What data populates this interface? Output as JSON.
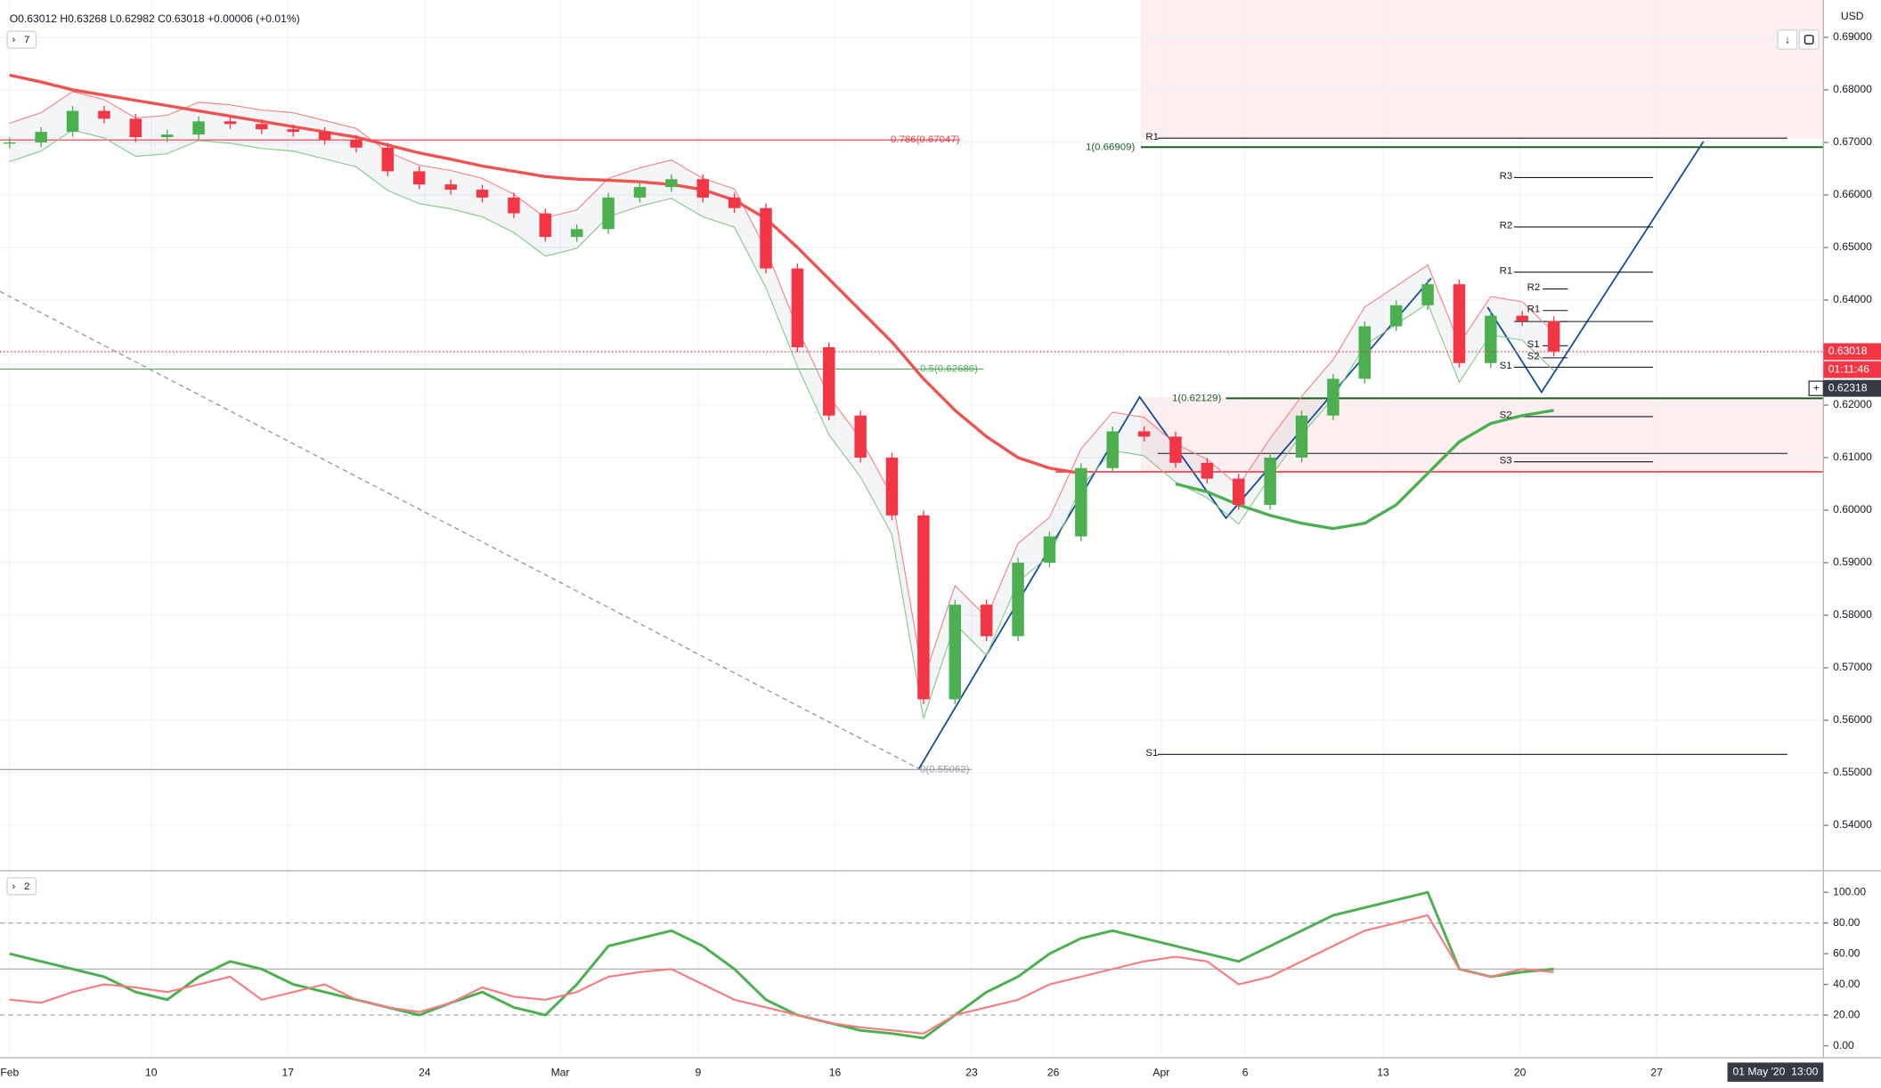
{
  "header": {
    "ohlc": "O0.63012 H0.63268 L0.62982 C0.63018 +0.00006 (+0.01%)",
    "indicator_count": "7",
    "currency": "USD"
  },
  "oscillator_count": "2",
  "time_axis": {
    "labels": [
      "Feb",
      "10",
      "17",
      "24",
      "Mar",
      "9",
      "16",
      "23",
      "26",
      "Apr",
      "6",
      "13",
      "20",
      "27"
    ],
    "cursor_time": "01 May '20  13:00"
  },
  "tags": {
    "last_price": {
      "label": "0.63018",
      "value": 0.63018
    },
    "countdown": "01:11:46",
    "cursor_price": {
      "label": "0.62318",
      "value": 0.62318
    }
  },
  "chart_data": [
    {
      "type": "candlestick",
      "up_color": "#4caf50",
      "down_color": "#f23645",
      "values": [
        0.67,
        0.672,
        0.676,
        0.6745,
        0.671,
        0.6715,
        0.674,
        0.6735,
        0.6725,
        0.672,
        0.6705,
        0.669,
        0.6645,
        0.662,
        0.661,
        0.6595,
        0.6565,
        0.652,
        0.6535,
        0.6595,
        0.6615,
        0.663,
        0.6595,
        0.6575,
        0.646,
        0.631,
        0.618,
        0.61,
        0.599,
        0.564,
        0.582,
        0.576,
        0.59,
        0.595,
        0.608,
        0.615,
        0.614,
        0.609,
        0.606,
        0.601,
        0.61,
        0.618,
        0.625,
        0.635,
        0.639,
        0.643,
        0.628,
        0.637,
        0.636,
        0.6302
      ],
      "series": [
        {
          "color": "#ef5350",
          "values": [
            0.6828,
            0.6815,
            0.68,
            0.679,
            0.678,
            0.677,
            0.676,
            0.675,
            0.674,
            0.673,
            0.672,
            0.671,
            0.6695,
            0.668,
            0.6668,
            0.6655,
            0.6645,
            0.6635,
            0.663,
            0.6628,
            0.6625,
            0.662,
            0.661,
            0.659,
            0.6555,
            0.65,
            0.644,
            0.638,
            0.632,
            0.625,
            0.619,
            0.614,
            0.61,
            0.608,
            0.607,
            null,
            null,
            null,
            null,
            null,
            null,
            null,
            null,
            null,
            null,
            null,
            null,
            null,
            null,
            null
          ]
        },
        {
          "color": "#4caf50",
          "values": [
            null,
            null,
            null,
            null,
            null,
            null,
            null,
            null,
            null,
            null,
            null,
            null,
            null,
            null,
            null,
            null,
            null,
            null,
            null,
            null,
            null,
            null,
            null,
            null,
            null,
            null,
            null,
            null,
            null,
            null,
            null,
            null,
            null,
            null,
            null,
            null,
            null,
            0.605,
            0.6035,
            0.601,
            0.599,
            0.5975,
            0.5965,
            0.5975,
            0.601,
            0.607,
            0.613,
            0.6165,
            0.618,
            0.619
          ]
        }
      ],
      "ylim": [
        0.5316,
        0.6971
      ],
      "yticks": [
        {
          "value": 0.69,
          "label": "0.69000"
        },
        {
          "value": 0.68,
          "label": "0.68000"
        },
        {
          "value": 0.67,
          "label": "0.67000"
        },
        {
          "value": 0.66,
          "label": "0.66000"
        },
        {
          "value": 0.65,
          "label": "0.65000"
        },
        {
          "value": 0.64,
          "label": "0.64000"
        },
        {
          "value": 0.63,
          "label": "0.63000"
        },
        {
          "value": 0.62,
          "label": "0.62000"
        },
        {
          "value": 0.61,
          "label": "0.61000"
        },
        {
          "value": 0.6,
          "label": "0.60000"
        },
        {
          "value": 0.59,
          "label": "0.59000"
        },
        {
          "value": 0.58,
          "label": "0.58000"
        },
        {
          "value": 0.57,
          "label": "0.57000"
        },
        {
          "value": 0.56,
          "label": "0.56000"
        },
        {
          "value": 0.55,
          "label": "0.55000"
        },
        {
          "value": 0.54,
          "label": "0.54000"
        }
      ],
      "zones": [
        {
          "from": 0.6708,
          "to": 0.6971,
          "color": "#fdeef0"
        },
        {
          "from": 0.6073,
          "to": 0.6215,
          "color": "#fdeef0"
        }
      ],
      "hlines": [
        {
          "value": 0.6073,
          "color": "#f23645"
        }
      ],
      "fib": [
        {
          "label": "0.786(0.67047)",
          "value": 0.67047,
          "color": "#f23645"
        },
        {
          "label": "0.5(0.62686)",
          "value": 0.62686,
          "color": "#4caf50"
        },
        {
          "label": "0(0.55062)",
          "value": 0.55062,
          "color": "#9598a1"
        },
        {
          "label": "1(0.66909)",
          "value": 0.66909,
          "color": "#1b5e20"
        },
        {
          "label": "1(0.62129)",
          "value": 0.62129,
          "color": "#1b5e20"
        }
      ],
      "pivots": [
        {
          "levels": [
            {
              "label": "R1",
              "value": 0.6708
            },
            {
              "label": null,
              "value": 0.6108
            },
            {
              "label": "S1",
              "value": 0.5535
            }
          ]
        },
        {
          "levels": [
            {
              "label": "R3",
              "value": 0.6633
            },
            {
              "label": "R2",
              "value": 0.6539
            },
            {
              "label": "R1",
              "value": 0.6453
            },
            {
              "label": null,
              "value": 0.6359
            },
            {
              "label": "S1",
              "value": 0.6272
            },
            {
              "label": "S2",
              "value": 0.6178
            },
            {
              "label": "S3",
              "value": 0.6092
            }
          ]
        },
        {
          "levels": [
            {
              "label": "R2",
              "value": 0.6421
            },
            {
              "label": "R1",
              "value": 0.638
            },
            {
              "label": null,
              "value": 0.6359
            },
            {
              "label": "S1",
              "value": 0.6313
            },
            {
              "label": "S2",
              "value": 0.629
            }
          ]
        }
      ]
    },
    {
      "type": "line",
      "series": [
        {
          "color": "#4caf50",
          "values": [
            60,
            55,
            50,
            45,
            35,
            30,
            45,
            55,
            50,
            40,
            35,
            30,
            25,
            20,
            28,
            35,
            25,
            20,
            40,
            65,
            70,
            75,
            65,
            50,
            30,
            20,
            15,
            10,
            8,
            5,
            20,
            35,
            45,
            60,
            70,
            75,
            70,
            65,
            60,
            55,
            65,
            75,
            85,
            90,
            95,
            100,
            50,
            45,
            48,
            50
          ]
        },
        {
          "color": "#f77c80",
          "values": [
            30,
            28,
            35,
            40,
            38,
            35,
            40,
            45,
            30,
            35,
            40,
            30,
            25,
            22,
            28,
            38,
            32,
            30,
            35,
            45,
            48,
            50,
            40,
            30,
            25,
            20,
            15,
            12,
            10,
            8,
            20,
            25,
            30,
            40,
            45,
            50,
            55,
            58,
            55,
            40,
            45,
            55,
            65,
            75,
            80,
            85,
            50,
            45,
            50,
            48
          ]
        }
      ],
      "ylim": [
        -7.8,
        113.3
      ],
      "yticks": [
        {
          "value": 100,
          "label": "100.00"
        },
        {
          "value": 80,
          "label": "80.00"
        },
        {
          "value": 60,
          "label": "60.00"
        },
        {
          "value": 40,
          "label": "40.00"
        },
        {
          "value": 20,
          "label": "20.00"
        },
        {
          "value": 0,
          "label": "0.00"
        }
      ],
      "levels": [
        80,
        50,
        20
      ]
    }
  ]
}
